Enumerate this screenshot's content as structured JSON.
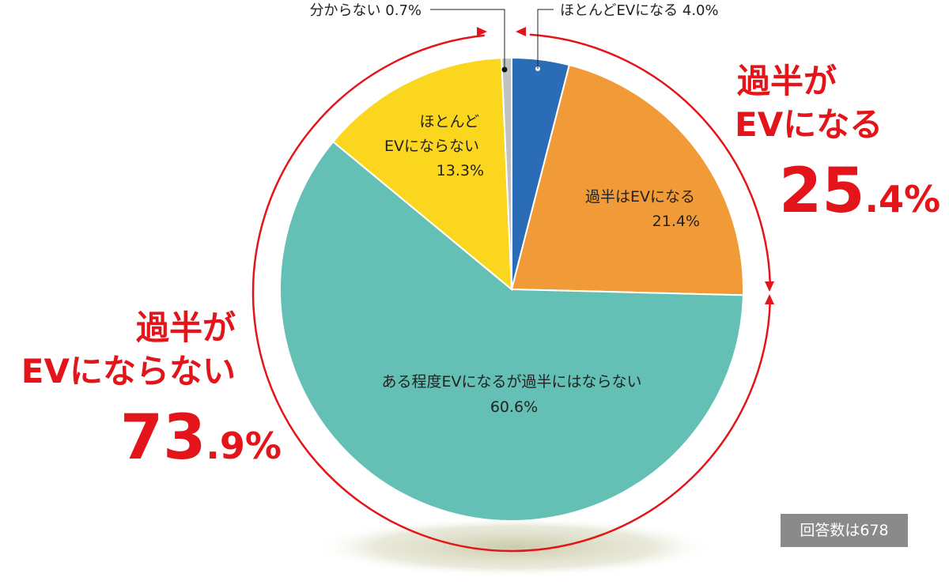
{
  "chart_data": {
    "type": "pie",
    "slices": [
      {
        "label": "ほとんどEVになる",
        "value": 4.0,
        "color": "#2a6cb5"
      },
      {
        "label": "過半はEVになる",
        "value": 21.4,
        "color": "#f19b38"
      },
      {
        "label": "ある程度EVになるが過半にはならない",
        "value": 60.6,
        "color": "#64c0b4"
      },
      {
        "label": "ほとんどEVにならない",
        "value": 13.3,
        "color": "#fbd61e"
      },
      {
        "label": "分からない",
        "value": 0.7,
        "color": "#c2c2c2"
      }
    ],
    "slice_labels": {
      "s1": {
        "line1": "過半はEVになる",
        "line2": "21.4%"
      },
      "s2": {
        "line1": "ある程度EVになるが過半にはならない",
        "line2": "60.6%"
      },
      "s3": {
        "line1": "ほとんど",
        "line2": "EVにならない",
        "line3": "13.3%"
      }
    },
    "callouts": {
      "mostly_ev": "ほとんどEVになる 4.0%",
      "unknown": "分からない 0.7%"
    },
    "groups": [
      {
        "line1": "過半が",
        "line2": "EVになる",
        "big": "25",
        "small": ".4%",
        "value": 25.4
      },
      {
        "line1": "過半が",
        "line2": "EVにならない",
        "big": "73",
        "small": ".9%",
        "value": 73.9
      }
    ],
    "respondents": "回答数は678",
    "accent_color": "#e3151a"
  }
}
